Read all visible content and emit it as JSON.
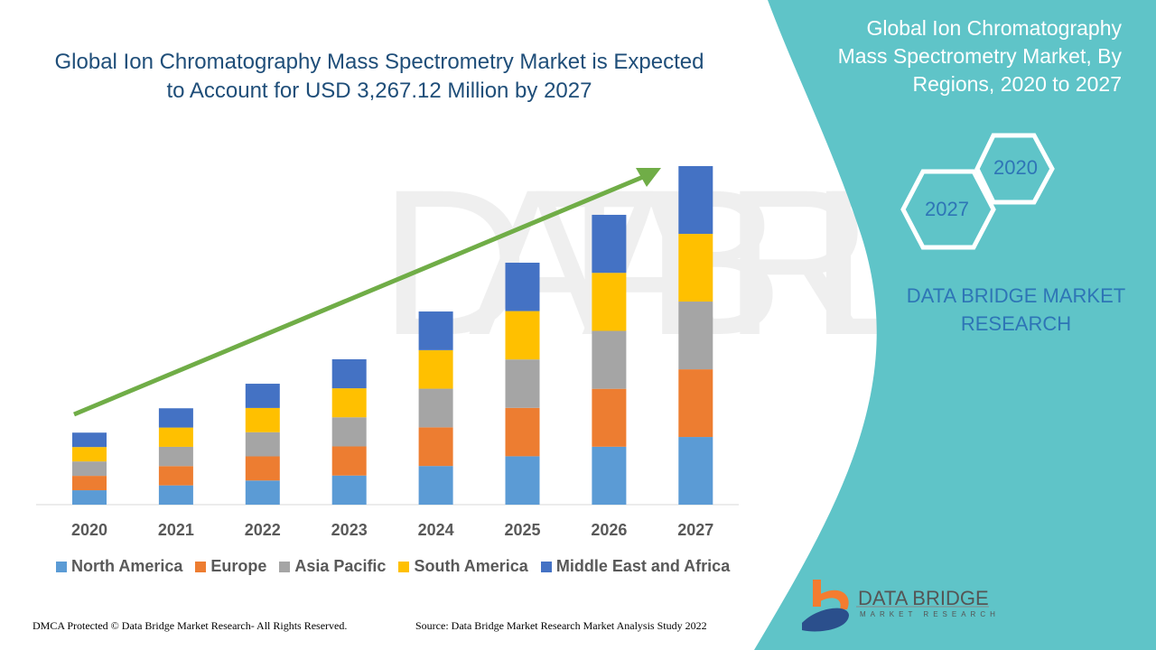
{
  "header": {
    "title": "Global Ion Chromatography Mass Spectrometry Market is Expected to Account for USD 3,267.12 Million by 2027",
    "side_title": "Global Ion Chromatography Mass Spectrometry Market, By Regions, 2020 to 2027",
    "hex_labels": [
      "2020",
      "2027"
    ],
    "brand": "DATA BRIDGE MARKET RESEARCH"
  },
  "logo": {
    "name": "DATA BRIDGE",
    "sub": "MARKET RESEARCH"
  },
  "footer": {
    "left": "DMCA Protected © Data Bridge Market Research- All Rights Reserved.",
    "right": "Source: Data Bridge Market Research Market Analysis Study 2022"
  },
  "colors": {
    "panel": "#5fc4c8",
    "arrow": "#70ad47",
    "title": "#1f4e79"
  },
  "chart_data": {
    "type": "bar",
    "stacked": true,
    "title": "Global Ion Chromatography Mass Spectrometry Market is Expected to Account for USD 3,267.12 Million by 2027",
    "xlabel": "",
    "ylabel": "",
    "ylim": [
      0,
      3300
    ],
    "grid": false,
    "legend": "bottom",
    "trend_arrow": true,
    "categories": [
      "2020",
      "2021",
      "2022",
      "2023",
      "2024",
      "2025",
      "2026",
      "2027"
    ],
    "series": [
      {
        "name": "North America",
        "color": "#5b9bd5",
        "values": [
          139,
          186,
          233,
          281,
          373,
          467,
          559,
          653
        ]
      },
      {
        "name": "Europe",
        "color": "#ed7d31",
        "values": [
          139,
          186,
          233,
          281,
          373,
          467,
          559,
          653
        ]
      },
      {
        "name": "Asia Pacific",
        "color": "#a5a5a5",
        "values": [
          139,
          186,
          233,
          281,
          373,
          467,
          559,
          654
        ]
      },
      {
        "name": "South America",
        "color": "#ffc000",
        "values": [
          139,
          186,
          234,
          280,
          372,
          467,
          560,
          653
        ]
      },
      {
        "name": "Middle East and Africa",
        "color": "#4472c4",
        "values": [
          139,
          186,
          234,
          280,
          373,
          467,
          560,
          654
        ]
      }
    ]
  }
}
